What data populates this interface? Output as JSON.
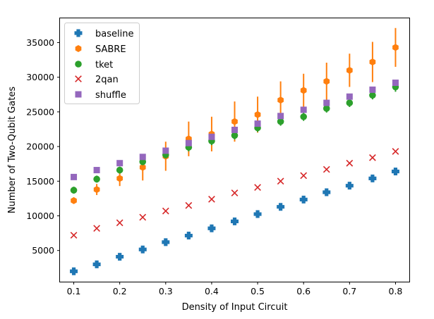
{
  "chart_data": {
    "type": "scatter",
    "title": "",
    "xlabel": "Density of Input Circuit",
    "ylabel": "Number of Two-Qubit Gates",
    "xlim": [
      0.07,
      0.83
    ],
    "ylim": [
      500,
      38500
    ],
    "xticks": [
      0.1,
      0.2,
      0.3,
      0.4,
      0.5,
      0.6,
      0.7,
      0.8
    ],
    "xtick_labels": [
      "0.1",
      "0.2",
      "0.3",
      "0.4",
      "0.5",
      "0.6",
      "0.7",
      "0.8"
    ],
    "yticks": [
      5000,
      10000,
      15000,
      20000,
      25000,
      30000,
      35000
    ],
    "ytick_labels": [
      "5000",
      "10000",
      "15000",
      "20000",
      "25000",
      "30000",
      "35000"
    ],
    "grid": false,
    "legend_position": "top-left",
    "x": [
      0.1,
      0.15,
      0.2,
      0.25,
      0.3,
      0.35,
      0.4,
      0.45,
      0.5,
      0.55,
      0.6,
      0.65,
      0.7,
      0.75,
      0.8
    ],
    "series": [
      {
        "name": "baseline",
        "marker": "plus",
        "color": "#1f77b4",
        "values": [
          2000,
          3000,
          4100,
          5150,
          6200,
          7150,
          8200,
          9200,
          10250,
          11300,
          12350,
          13400,
          14350,
          15400,
          16400
        ],
        "errors": [
          0,
          0,
          0,
          0,
          0,
          0,
          0,
          0,
          0,
          0,
          0,
          0,
          0,
          0,
          0
        ]
      },
      {
        "name": "SABRE",
        "marker": "hexagon",
        "color": "#ff7f0e",
        "values": [
          12200,
          13800,
          15400,
          17000,
          18600,
          21100,
          21800,
          23600,
          24600,
          26700,
          28100,
          29400,
          31000,
          32200,
          34300
        ],
        "errors": [
          300,
          800,
          1100,
          1900,
          2100,
          2500,
          2500,
          2900,
          2600,
          2700,
          2400,
          2700,
          2400,
          2900,
          2800
        ]
      },
      {
        "name": "tket",
        "marker": "circle",
        "color": "#2ca02c",
        "values": [
          13700,
          15300,
          16600,
          17800,
          18800,
          19900,
          20800,
          21600,
          22700,
          23600,
          24300,
          25500,
          26300,
          27400,
          28600
        ],
        "errors": [
          500,
          500,
          500,
          500,
          500,
          600,
          600,
          600,
          600,
          600,
          600,
          600,
          600,
          600,
          700
        ]
      },
      {
        "name": "2qan",
        "marker": "x",
        "color": "#d62728",
        "values": [
          7200,
          8200,
          9000,
          9800,
          10700,
          11500,
          12400,
          13300,
          14100,
          15000,
          15800,
          16700,
          17600,
          18400,
          19300
        ],
        "errors": [
          0,
          0,
          0,
          0,
          0,
          0,
          0,
          0,
          0,
          0,
          0,
          0,
          0,
          0,
          0
        ]
      },
      {
        "name": "shuffle",
        "marker": "square",
        "color": "#9467bd",
        "values": [
          15600,
          16600,
          17600,
          18500,
          19400,
          20500,
          21400,
          22400,
          23300,
          24400,
          25300,
          26300,
          27200,
          28200,
          29200
        ],
        "errors": [
          0,
          0,
          0,
          0,
          0,
          0,
          0,
          0,
          0,
          0,
          0,
          0,
          0,
          0,
          0
        ]
      }
    ]
  }
}
